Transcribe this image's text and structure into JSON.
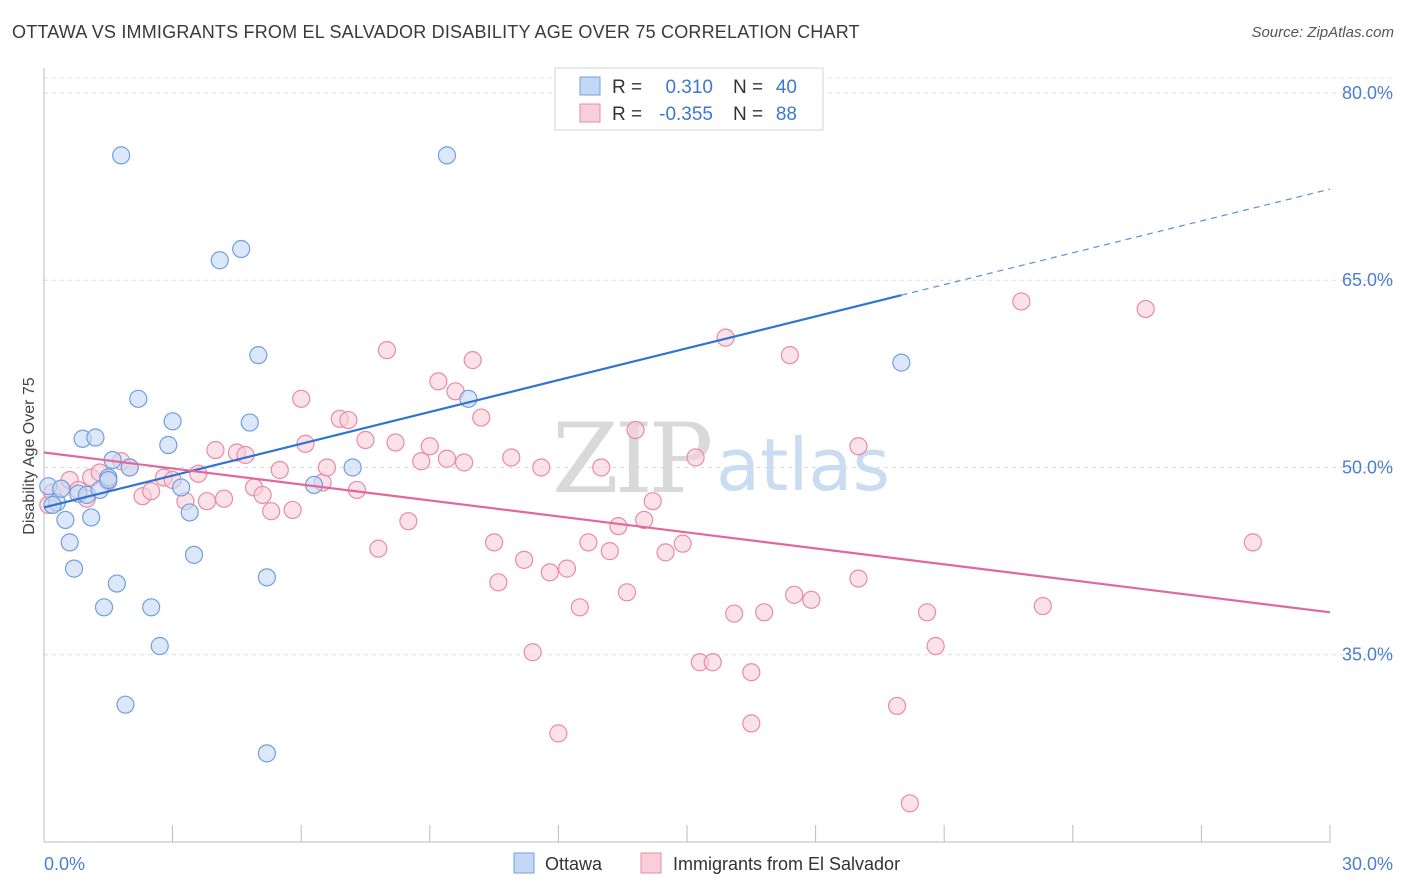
{
  "header": {
    "title": "OTTAWA VS IMMIGRANTS FROM EL SALVADOR DISABILITY AGE OVER 75 CORRELATION CHART",
    "source": "Source: ZipAtlas.com"
  },
  "watermark": {
    "zip": "ZIP",
    "atlas": "atlas"
  },
  "legend_top": {
    "rows": [
      {
        "r_label": "R =",
        "r_value": "0.310",
        "n_label": "N =",
        "n_value": "40"
      },
      {
        "r_label": "R =",
        "r_value": "-0.355",
        "n_label": "N =",
        "n_value": "88"
      }
    ]
  },
  "chart_data": {
    "type": "scatter",
    "title": "OTTAWA VS IMMIGRANTS FROM EL SALVADOR DISABILITY AGE OVER 75 CORRELATION CHART",
    "xlabel": "",
    "ylabel": "Disability Age Over 75",
    "xlim": [
      0,
      30
    ],
    "ylim": [
      20,
      82
    ],
    "x_tick_labels": [
      "0.0%",
      "30.0%"
    ],
    "y_ticks": [
      35,
      50,
      65,
      80
    ],
    "y_tick_labels": [
      "35.0%",
      "50.0%",
      "65.0%",
      "80.0%"
    ],
    "grid": true,
    "legend_position": "bottom",
    "colors": {
      "ottawa": "#6f9fe0",
      "ottawa_fill": "#c4d8f5",
      "elsalvador": "#e98aa9",
      "elsalvador_fill": "#f8cedb",
      "ottawa_line": "#2e74d0",
      "elsalvador_line": "#e0689a"
    },
    "series": [
      {
        "name": "Ottawa",
        "r": 0.31,
        "n": 40,
        "trend": {
          "x0": 0,
          "y0": 46.8,
          "x1": 20,
          "y1": 63.8,
          "dash_x1": 30,
          "dash_y1": 72.3
        },
        "points": [
          [
            0.1,
            48.5
          ],
          [
            0.3,
            47.2
          ],
          [
            0.4,
            48.3
          ],
          [
            0.5,
            45.8
          ],
          [
            0.6,
            44.0
          ],
          [
            0.7,
            41.9
          ],
          [
            0.8,
            47.9
          ],
          [
            0.9,
            52.3
          ],
          [
            1.0,
            47.8
          ],
          [
            1.1,
            46.0
          ],
          [
            1.2,
            52.4
          ],
          [
            1.3,
            48.2
          ],
          [
            1.4,
            38.8
          ],
          [
            1.5,
            49.2
          ],
          [
            1.6,
            50.6
          ],
          [
            1.7,
            40.7
          ],
          [
            1.8,
            75.0
          ],
          [
            1.9,
            31.0
          ],
          [
            2.0,
            50.0
          ],
          [
            2.2,
            55.5
          ],
          [
            2.5,
            38.8
          ],
          [
            2.7,
            35.7
          ],
          [
            2.9,
            51.8
          ],
          [
            3.0,
            53.7
          ],
          [
            3.2,
            48.4
          ],
          [
            3.4,
            46.4
          ],
          [
            3.5,
            43.0
          ],
          [
            4.1,
            66.6
          ],
          [
            4.6,
            67.5
          ],
          [
            4.8,
            53.6
          ],
          [
            5.0,
            59.0
          ],
          [
            5.2,
            41.2
          ],
          [
            5.2,
            27.1
          ],
          [
            6.3,
            48.6
          ],
          [
            7.2,
            50.0
          ],
          [
            9.4,
            75.0
          ],
          [
            9.9,
            55.5
          ],
          [
            20.0,
            58.4
          ],
          [
            0.2,
            47.0
          ],
          [
            1.5,
            49.0
          ]
        ]
      },
      {
        "name": "Immigrants from El Salvador",
        "r": -0.355,
        "n": 88,
        "trend": {
          "x0": 0,
          "y0": 51.2,
          "x1": 30,
          "y1": 38.4
        },
        "points": [
          [
            0.1,
            47.0
          ],
          [
            0.2,
            48.0
          ],
          [
            0.4,
            48.3
          ],
          [
            0.6,
            49.0
          ],
          [
            0.8,
            48.2
          ],
          [
            1.0,
            47.5
          ],
          [
            1.1,
            49.2
          ],
          [
            1.3,
            49.6
          ],
          [
            1.5,
            48.9
          ],
          [
            1.8,
            50.5
          ],
          [
            2.0,
            50.0
          ],
          [
            2.3,
            47.7
          ],
          [
            2.5,
            48.1
          ],
          [
            2.8,
            49.2
          ],
          [
            3.0,
            49.0
          ],
          [
            3.3,
            47.3
          ],
          [
            3.6,
            49.5
          ],
          [
            3.8,
            47.3
          ],
          [
            4.0,
            51.4
          ],
          [
            4.2,
            47.5
          ],
          [
            4.5,
            51.2
          ],
          [
            4.7,
            51.0
          ],
          [
            4.9,
            48.4
          ],
          [
            5.1,
            47.8
          ],
          [
            5.3,
            46.5
          ],
          [
            5.5,
            49.8
          ],
          [
            5.8,
            46.6
          ],
          [
            6.0,
            55.5
          ],
          [
            6.1,
            51.9
          ],
          [
            6.5,
            48.8
          ],
          [
            6.6,
            50.0
          ],
          [
            6.9,
            53.9
          ],
          [
            7.1,
            53.8
          ],
          [
            7.3,
            48.2
          ],
          [
            7.5,
            52.2
          ],
          [
            7.8,
            43.5
          ],
          [
            8.0,
            59.4
          ],
          [
            8.2,
            52.0
          ],
          [
            8.5,
            45.7
          ],
          [
            8.8,
            50.5
          ],
          [
            9.0,
            51.7
          ],
          [
            9.2,
            56.9
          ],
          [
            9.4,
            50.7
          ],
          [
            9.6,
            56.1
          ],
          [
            9.8,
            50.4
          ],
          [
            10.0,
            58.6
          ],
          [
            10.2,
            54.0
          ],
          [
            10.5,
            44.0
          ],
          [
            10.6,
            40.8
          ],
          [
            10.9,
            50.8
          ],
          [
            11.2,
            42.6
          ],
          [
            11.4,
            35.2
          ],
          [
            11.6,
            50.0
          ],
          [
            11.8,
            41.6
          ],
          [
            12.0,
            28.7
          ],
          [
            12.2,
            41.9
          ],
          [
            12.5,
            38.8
          ],
          [
            12.7,
            44.0
          ],
          [
            13.0,
            50.0
          ],
          [
            13.2,
            43.3
          ],
          [
            13.4,
            45.3
          ],
          [
            13.6,
            40.0
          ],
          [
            13.8,
            53.0
          ],
          [
            14.0,
            45.8
          ],
          [
            14.2,
            47.3
          ],
          [
            14.5,
            43.2
          ],
          [
            14.9,
            43.9
          ],
          [
            15.2,
            50.8
          ],
          [
            15.3,
            34.4
          ],
          [
            15.6,
            34.4
          ],
          [
            15.9,
            60.4
          ],
          [
            16.1,
            38.3
          ],
          [
            16.5,
            33.6
          ],
          [
            16.5,
            29.5
          ],
          [
            16.8,
            38.4
          ],
          [
            17.4,
            59.0
          ],
          [
            17.5,
            39.8
          ],
          [
            17.9,
            39.4
          ],
          [
            19.0,
            41.1
          ],
          [
            19.0,
            51.7
          ],
          [
            19.9,
            30.9
          ],
          [
            20.2,
            23.1
          ],
          [
            20.6,
            38.4
          ],
          [
            20.8,
            35.7
          ],
          [
            22.8,
            63.3
          ],
          [
            23.3,
            38.9
          ],
          [
            25.7,
            62.7
          ],
          [
            28.2,
            44.0
          ]
        ]
      }
    ]
  },
  "legend_bottom": {
    "items": [
      {
        "label": "Ottawa"
      },
      {
        "label": "Immigrants from El Salvador"
      }
    ]
  }
}
